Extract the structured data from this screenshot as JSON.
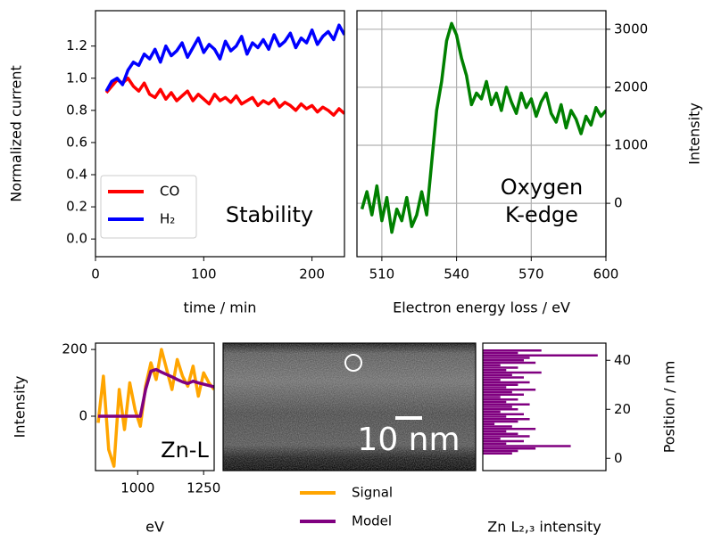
{
  "chart_data": [
    {
      "type": "line",
      "annotation": "Stability",
      "xlabel": "time / min",
      "ylabel": "Normalized current",
      "x": [
        10,
        15,
        20,
        25,
        30,
        35,
        40,
        45,
        50,
        55,
        60,
        65,
        70,
        75,
        80,
        85,
        90,
        95,
        100,
        105,
        110,
        115,
        120,
        125,
        130,
        135,
        140,
        145,
        150,
        155,
        160,
        165,
        170,
        175,
        180,
        185,
        190,
        195,
        200,
        205,
        210,
        215,
        220,
        225,
        230
      ],
      "series": [
        {
          "name": "CO",
          "color": "#ff0000",
          "values": [
            0.91,
            0.95,
            0.99,
            0.97,
            1.0,
            0.95,
            0.92,
            0.97,
            0.9,
            0.88,
            0.93,
            0.87,
            0.91,
            0.86,
            0.89,
            0.92,
            0.86,
            0.9,
            0.87,
            0.84,
            0.9,
            0.86,
            0.88,
            0.85,
            0.89,
            0.84,
            0.86,
            0.88,
            0.83,
            0.86,
            0.84,
            0.87,
            0.82,
            0.85,
            0.83,
            0.8,
            0.84,
            0.81,
            0.83,
            0.79,
            0.82,
            0.8,
            0.77,
            0.81,
            0.78
          ]
        },
        {
          "name": "H₂",
          "color": "#0000ff",
          "values": [
            0.92,
            0.98,
            1.0,
            0.96,
            1.05,
            1.1,
            1.08,
            1.15,
            1.12,
            1.18,
            1.1,
            1.2,
            1.14,
            1.17,
            1.22,
            1.13,
            1.19,
            1.25,
            1.16,
            1.21,
            1.18,
            1.12,
            1.23,
            1.17,
            1.2,
            1.26,
            1.15,
            1.22,
            1.19,
            1.24,
            1.18,
            1.27,
            1.2,
            1.23,
            1.28,
            1.19,
            1.25,
            1.22,
            1.3,
            1.21,
            1.26,
            1.29,
            1.24,
            1.33,
            1.27
          ]
        }
      ],
      "xlim": [
        0,
        230
      ],
      "xticks": [
        0,
        100,
        200
      ],
      "ylim": [
        -0.11,
        1.42
      ],
      "yticks": [
        {
          "value": 0,
          "label": "0.0"
        },
        0.2,
        0.4,
        0.6,
        0.8,
        {
          "value": 1,
          "label": "1.0"
        },
        1.2
      ],
      "grid": false,
      "legend": "lower left"
    },
    {
      "type": "line",
      "annotation": [
        "Oxygen",
        "K-edge"
      ],
      "xlabel": "Electron energy loss / eV",
      "ylabel": "Intensity",
      "x": [
        502,
        504,
        506,
        508,
        510,
        512,
        514,
        516,
        518,
        520,
        522,
        524,
        526,
        528,
        530,
        532,
        534,
        536,
        538,
        540,
        542,
        544,
        546,
        548,
        550,
        552,
        554,
        556,
        558,
        560,
        562,
        564,
        566,
        568,
        570,
        572,
        574,
        576,
        578,
        580,
        582,
        584,
        586,
        588,
        590,
        592,
        594,
        596,
        598,
        600
      ],
      "series": [
        {
          "color": "#008000",
          "axis": "y2",
          "values": [
            -100,
            200,
            -200,
            300,
            -300,
            100,
            -500,
            -100,
            -300,
            100,
            -400,
            -200,
            200,
            -200,
            700,
            1600,
            2100,
            2800,
            3100,
            2900,
            2500,
            2200,
            1700,
            1900,
            1800,
            2100,
            1700,
            1900,
            1600,
            2000,
            1750,
            1550,
            1900,
            1650,
            1800,
            1500,
            1750,
            1900,
            1550,
            1400,
            1700,
            1300,
            1600,
            1450,
            1200,
            1500,
            1350,
            1650,
            1500,
            1600
          ]
        }
      ],
      "xlim": [
        500,
        600
      ],
      "xticks": [
        510,
        540,
        570,
        600
      ],
      "y2lim": [
        -920,
        3320
      ],
      "y2ticks": [
        0,
        1000,
        2000,
        3000
      ],
      "grid": true
    },
    {
      "type": "line",
      "annotation": "Zn-L",
      "xlabel": "eV",
      "ylabel": "Intensity",
      "x": [
        850,
        870,
        890,
        910,
        930,
        950,
        970,
        990,
        1010,
        1030,
        1050,
        1070,
        1090,
        1110,
        1130,
        1150,
        1170,
        1190,
        1210,
        1230,
        1250,
        1270,
        1290
      ],
      "series": [
        {
          "name": "Signal",
          "color": "#ffa500",
          "values": [
            -20,
            120,
            -100,
            -150,
            80,
            -40,
            100,
            20,
            -30,
            90,
            160,
            110,
            200,
            140,
            80,
            170,
            120,
            90,
            150,
            60,
            130,
            100,
            80
          ]
        },
        {
          "name": "Model",
          "color": "#800080",
          "values": [
            0,
            0,
            0,
            0,
            0,
            0,
            0,
            0,
            0,
            80,
            135,
            140,
            132,
            125,
            118,
            110,
            103,
            98,
            105,
            100,
            96,
            92,
            88
          ]
        }
      ],
      "xlim": [
        840,
        1290
      ],
      "xticks": [
        1000,
        1250
      ],
      "ylim": [
        -163,
        219
      ],
      "yticks": [
        0,
        200
      ],
      "grid": false,
      "legend": "below"
    },
    {
      "type": "image",
      "annotation": "10 nm"
    },
    {
      "type": "barh",
      "xlabel": "Zn L₂,₃ intensity",
      "ylabel": "Position / nm",
      "y": [
        2,
        3,
        4,
        5,
        6,
        7,
        8,
        9,
        10,
        11,
        12,
        13,
        14,
        15,
        16,
        17,
        18,
        19,
        20,
        21,
        22,
        23,
        24,
        25,
        26,
        27,
        28,
        29,
        30,
        31,
        32,
        33,
        34,
        35,
        36,
        37,
        38,
        39,
        40,
        41,
        42,
        43,
        44
      ],
      "series": [
        {
          "color": "#800080",
          "axis": "y2",
          "values": [
            0.25,
            0.3,
            0.45,
            0.75,
            0.2,
            0.35,
            0.15,
            0.4,
            0.3,
            0.2,
            0.45,
            0.25,
            0.1,
            0.3,
            0.4,
            0.2,
            0.35,
            0.15,
            0.3,
            0.25,
            0.4,
            0.2,
            0.3,
            0.15,
            0.35,
            0.25,
            0.45,
            0.2,
            0.3,
            0.4,
            0.15,
            0.35,
            0.25,
            0.5,
            0.2,
            0.3,
            0.15,
            0.45,
            0.35,
            0.4,
            0.98,
            0.3,
            0.5
          ]
        }
      ],
      "xlim": [
        0,
        1.05
      ],
      "y2lim": [
        -5,
        47
      ],
      "y2ticks": [
        0,
        20,
        40
      ],
      "grid": false
    }
  ]
}
